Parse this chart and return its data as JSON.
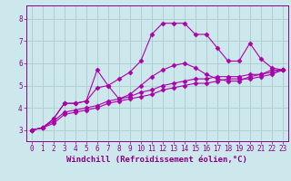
{
  "xlabel": "Windchill (Refroidissement éolien,°C)",
  "background_color": "#cce8ec",
  "grid_color": "#aacccc",
  "line_color": "#aa00aa",
  "xlim": [
    -0.5,
    23.5
  ],
  "ylim": [
    2.5,
    8.6
  ],
  "yticks": [
    3,
    4,
    5,
    6,
    7,
    8
  ],
  "xticks": [
    0,
    1,
    2,
    3,
    4,
    5,
    6,
    7,
    8,
    9,
    10,
    11,
    12,
    13,
    14,
    15,
    16,
    17,
    18,
    19,
    20,
    21,
    22,
    23
  ],
  "series": [
    {
      "x": [
        0,
        1,
        2,
        3,
        4,
        5,
        6,
        7,
        8,
        9,
        10,
        11,
        12,
        13,
        14,
        15,
        16,
        17,
        18,
        19,
        20,
        21,
        22,
        23
      ],
      "y": [
        3.0,
        3.1,
        3.5,
        4.2,
        4.2,
        4.3,
        5.7,
        5.0,
        5.3,
        5.6,
        6.1,
        7.3,
        7.8,
        7.8,
        7.8,
        7.3,
        7.3,
        6.7,
        6.1,
        6.1,
        6.9,
        6.2,
        5.8,
        5.7
      ]
    },
    {
      "x": [
        0,
        1,
        2,
        3,
        4,
        5,
        6,
        7,
        8,
        9,
        10,
        11,
        12,
        13,
        14,
        15,
        16,
        17,
        18,
        19,
        20,
        21,
        22,
        23
      ],
      "y": [
        3.0,
        3.1,
        3.5,
        4.2,
        4.2,
        4.3,
        4.9,
        5.0,
        4.4,
        4.6,
        5.0,
        5.4,
        5.7,
        5.9,
        6.0,
        5.8,
        5.5,
        5.3,
        5.2,
        5.2,
        5.4,
        5.5,
        5.7,
        5.7
      ]
    },
    {
      "x": [
        0,
        1,
        2,
        3,
        4,
        5,
        6,
        7,
        8,
        9,
        10,
        11,
        12,
        13,
        14,
        15,
        16,
        17,
        18,
        19,
        20,
        21,
        22,
        23
      ],
      "y": [
        3.0,
        3.1,
        3.4,
        3.8,
        3.9,
        4.0,
        4.1,
        4.3,
        4.4,
        4.5,
        4.7,
        4.8,
        5.0,
        5.1,
        5.2,
        5.3,
        5.3,
        5.4,
        5.4,
        5.4,
        5.5,
        5.5,
        5.6,
        5.7
      ]
    },
    {
      "x": [
        0,
        1,
        2,
        3,
        4,
        5,
        6,
        7,
        8,
        9,
        10,
        11,
        12,
        13,
        14,
        15,
        16,
        17,
        18,
        19,
        20,
        21,
        22,
        23
      ],
      "y": [
        3.0,
        3.1,
        3.3,
        3.7,
        3.8,
        3.9,
        4.0,
        4.2,
        4.3,
        4.4,
        4.5,
        4.6,
        4.8,
        4.9,
        5.0,
        5.1,
        5.1,
        5.2,
        5.3,
        5.3,
        5.3,
        5.4,
        5.5,
        5.7
      ]
    }
  ],
  "marker": "D",
  "markersize": 2.5,
  "linewidth": 0.8,
  "font_color": "#880088",
  "spine_color": "#880088",
  "tick_fontsize": 5.5,
  "label_fontsize": 6.5
}
